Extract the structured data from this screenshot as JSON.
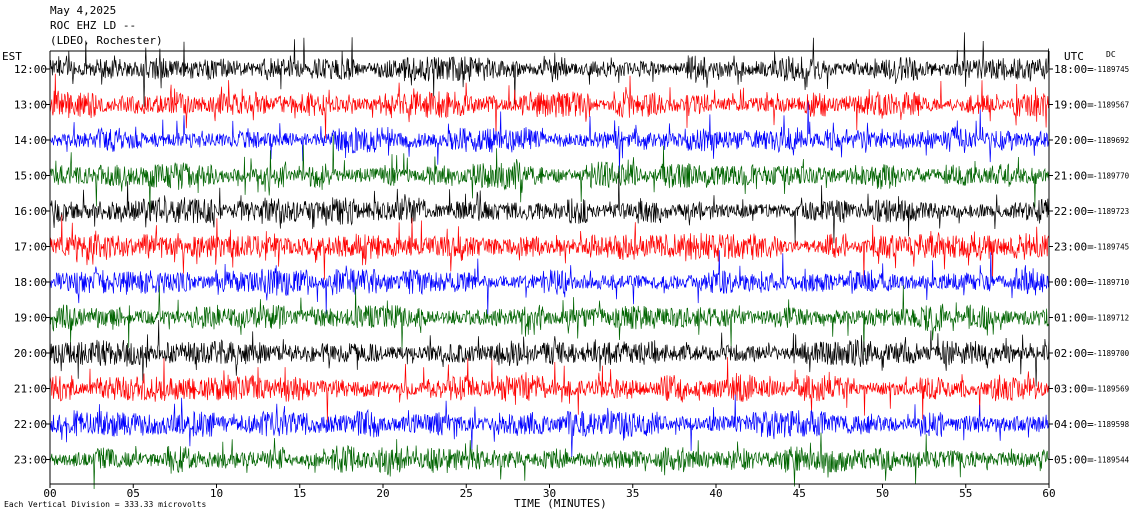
{
  "header": {
    "date": "May 4,2025",
    "station": "ROC EHZ LD --",
    "network": "(LDEO, Rochester)"
  },
  "axes": {
    "left_zone": "EST",
    "right_zone": "UTC",
    "dc_label": "DC",
    "x_title": "TIME (MINUTES)",
    "scale_note": "Each Vertical Division = 333.33 microvolts"
  },
  "chart_data": {
    "type": "line",
    "title": "",
    "xlabel": "TIME (MINUTES)",
    "ylabel": "",
    "xlim": [
      0,
      60
    ],
    "x_ticks": [
      0,
      5,
      10,
      15,
      20,
      25,
      30,
      35,
      40,
      45,
      50,
      55,
      60
    ],
    "x_tick_labels": [
      "00",
      "05",
      "10",
      "15",
      "20",
      "25",
      "30",
      "35",
      "40",
      "45",
      "50",
      "55",
      "60"
    ],
    "trace_colors": [
      "#000000",
      "#ff0000",
      "#0000ff",
      "#006400"
    ],
    "rows": [
      {
        "est": "12:00",
        "utc": "18:00",
        "dc": "1189745",
        "color": "#000000"
      },
      {
        "est": "13:00",
        "utc": "19:00",
        "dc": "1189567",
        "color": "#ff0000"
      },
      {
        "est": "14:00",
        "utc": "20:00",
        "dc": "1189692",
        "color": "#0000ff"
      },
      {
        "est": "15:00",
        "utc": "21:00",
        "dc": "1189770",
        "color": "#006400"
      },
      {
        "est": "16:00",
        "utc": "22:00",
        "dc": "1189723",
        "color": "#000000"
      },
      {
        "est": "17:00",
        "utc": "23:00",
        "dc": "1189745",
        "color": "#ff0000"
      },
      {
        "est": "18:00",
        "utc": "00:00",
        "dc": "1189710",
        "color": "#0000ff"
      },
      {
        "est": "19:00",
        "utc": "01:00",
        "dc": "1189712",
        "color": "#006400"
      },
      {
        "est": "20:00",
        "utc": "02:00",
        "dc": "1189700",
        "color": "#000000"
      },
      {
        "est": "21:00",
        "utc": "03:00",
        "dc": "1189569",
        "color": "#ff0000"
      },
      {
        "est": "22:00",
        "utc": "04:00",
        "dc": "1189598",
        "color": "#0000ff"
      },
      {
        "est": "23:00",
        "utc": "05:00",
        "dc": "1189544",
        "color": "#006400"
      }
    ]
  }
}
